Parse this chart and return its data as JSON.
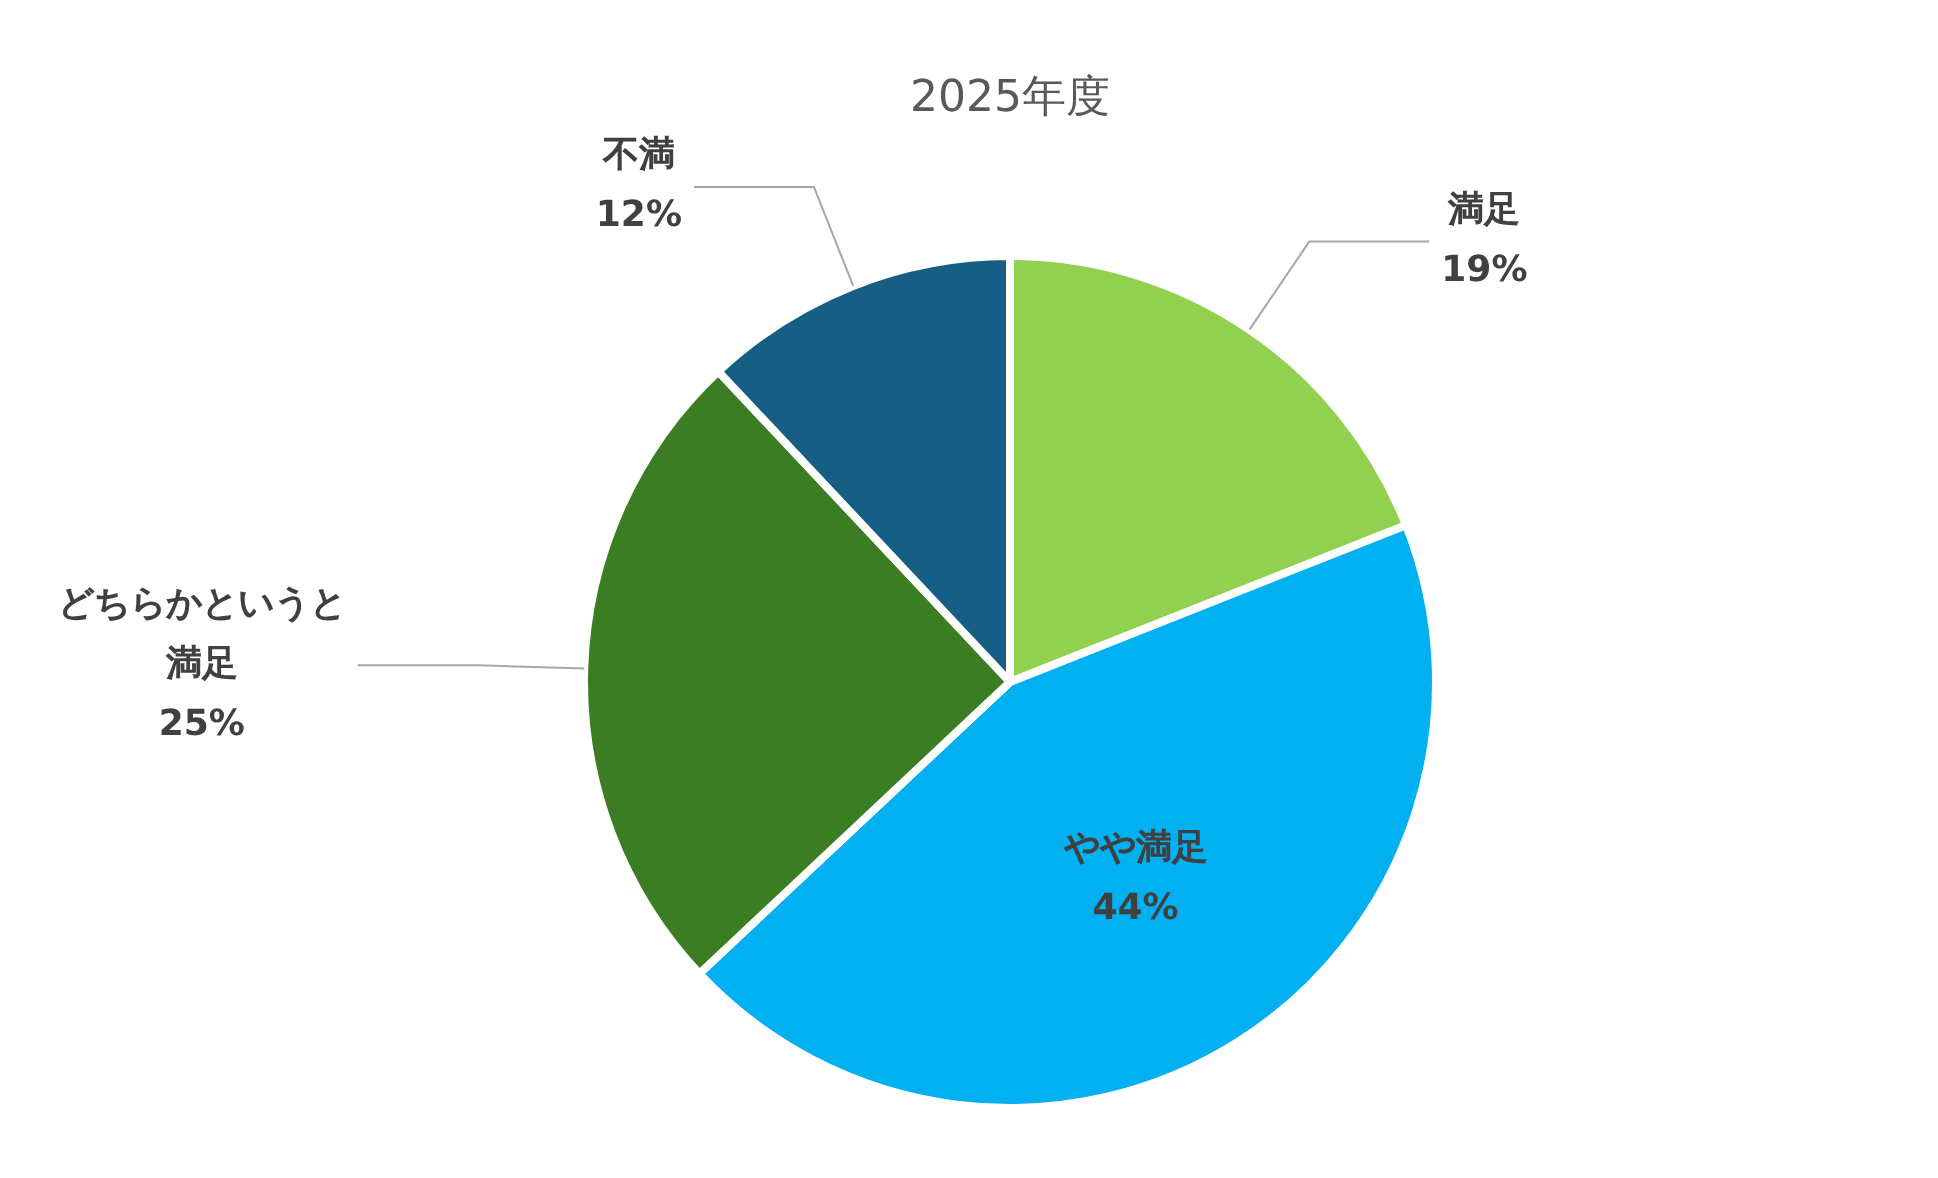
{
  "chart_data": {
    "type": "pie",
    "title": "2025年度",
    "categories": [
      "満足",
      "やや満足",
      "どちらかというと満足",
      "不満"
    ],
    "values": [
      19,
      44,
      25,
      12
    ],
    "colors": [
      "#92d050",
      "#00b0f0",
      "#3b7d23",
      "#165e83"
    ],
    "value_labels": [
      "19%",
      "44%",
      "25%",
      "12%"
    ],
    "legend": false
  }
}
